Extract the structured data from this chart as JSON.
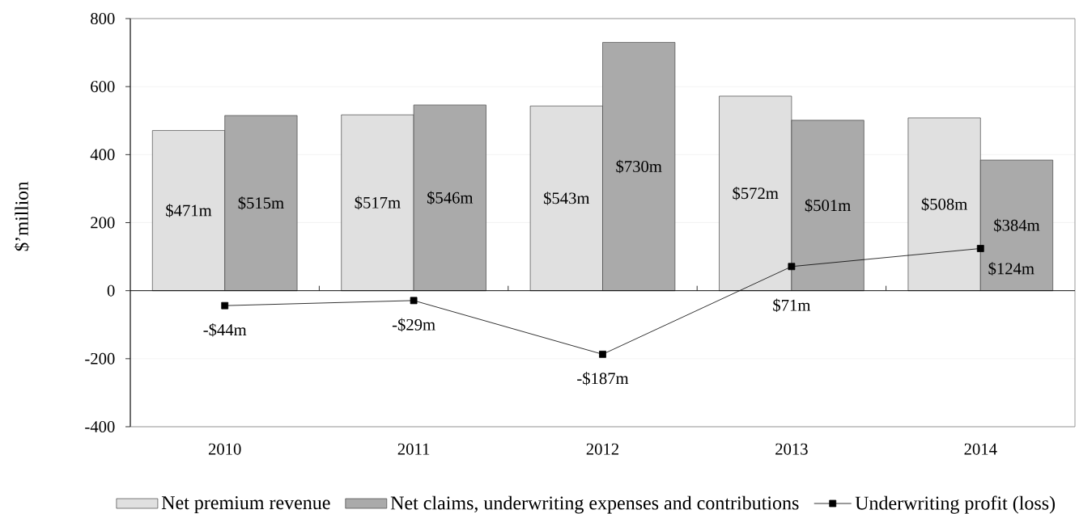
{
  "chart_data": {
    "type": "bar",
    "ylabel": "$’million",
    "categories": [
      "2010",
      "2011",
      "2012",
      "2013",
      "2014"
    ],
    "ylim": [
      -400,
      800
    ],
    "yticks": [
      -400,
      -200,
      0,
      200,
      400,
      600,
      800
    ],
    "grid": "y",
    "legend": "bottom",
    "marker": "square",
    "series": [
      {
        "name": "Net premium revenue",
        "color": "#e0e0e0",
        "values": [
          471,
          517,
          543,
          572,
          508
        ],
        "value_labels": [
          "$471m",
          "$517m",
          "$543m",
          "$572m",
          "$508m"
        ]
      },
      {
        "name": "Net claims, underwriting expenses and contributions",
        "color": "#aaaaaa",
        "values": [
          515,
          546,
          730,
          501,
          384
        ],
        "value_labels": [
          "$515m",
          "$546m",
          "$730m",
          "$501m",
          "$384m"
        ]
      },
      {
        "name": "Underwriting profit (loss)",
        "type": "line",
        "color": "#000000",
        "values": [
          -44,
          -29,
          -187,
          71,
          124
        ],
        "value_labels": [
          "-$44m",
          "-$29m",
          "-$187m",
          "$71m",
          "$124m"
        ]
      }
    ]
  }
}
